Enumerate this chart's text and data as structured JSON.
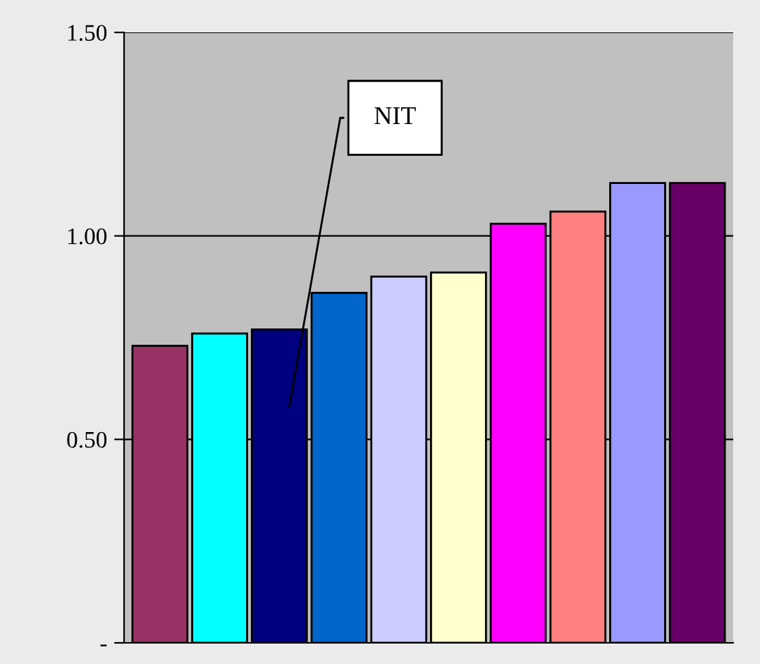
{
  "chart_data": {
    "type": "bar",
    "categories": [
      null,
      null,
      null,
      null,
      null,
      null,
      null,
      null,
      null,
      null
    ],
    "values": [
      0.73,
      0.76,
      0.77,
      0.86,
      0.9,
      0.91,
      1.03,
      1.06,
      1.13,
      1.13
    ],
    "colors": [
      "#993366",
      "#00ffff",
      "#000080",
      "#0066cc",
      "#ccccff",
      "#ffffcc",
      "#ff00ff",
      "#ff8080",
      "#9999ff",
      "#660066"
    ],
    "ylim": [
      0,
      1.5
    ],
    "yticks": [
      {
        "value": 0,
        "label": "-"
      },
      {
        "value": 0.5,
        "label": "0.50"
      },
      {
        "value": 1.0,
        "label": "1.00"
      },
      {
        "value": 1.5,
        "label": "1.50"
      }
    ],
    "grid": "y",
    "legend": false,
    "annotations": [
      "NIT"
    ]
  }
}
